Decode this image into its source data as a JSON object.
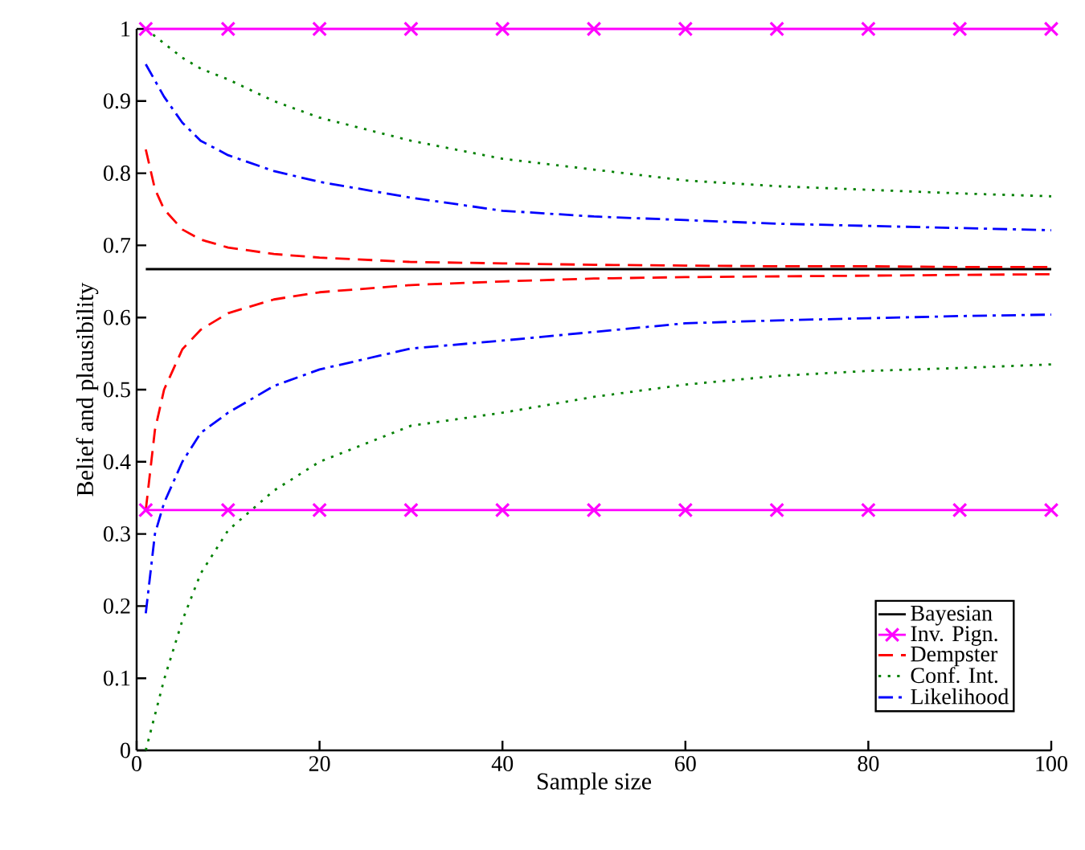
{
  "chart_data": {
    "type": "line",
    "xlabel": "Sample size",
    "ylabel": "Belief and plausibility",
    "xlim": [
      0,
      100
    ],
    "ylim": [
      0,
      1
    ],
    "xticks": [
      0,
      20,
      40,
      60,
      80,
      100
    ],
    "yticks": [
      0,
      0.1,
      0.2,
      0.3,
      0.4,
      0.5,
      0.6,
      0.7,
      0.8,
      0.9,
      1
    ],
    "grid": false,
    "legend": "bottom right",
    "series": [
      {
        "name": "Bayesian",
        "color": "#000000",
        "line_style": "solid",
        "marker": "none",
        "x": [
          1,
          100
        ],
        "values": [
          0.667,
          0.667
        ]
      },
      {
        "name": "Inv. Pign.",
        "color": "#ff00ff",
        "line_style": "solid",
        "marker": "cross",
        "x": [
          1,
          10,
          20,
          30,
          40,
          50,
          60,
          70,
          80,
          90,
          100
        ],
        "values": [
          1,
          1,
          1,
          1,
          1,
          1,
          1,
          1,
          1,
          1,
          1
        ]
      },
      {
        "color": "#ff00ff",
        "line_style": "solid",
        "marker": "cross",
        "x": [
          1,
          10,
          20,
          30,
          40,
          50,
          60,
          70,
          80,
          90,
          100
        ],
        "values": [
          0.333,
          0.333,
          0.333,
          0.333,
          0.333,
          0.333,
          0.333,
          0.333,
          0.333,
          0.333,
          0.333
        ]
      },
      {
        "name": "Dempster",
        "color": "#ff0000",
        "line_style": "dashed",
        "marker": "none",
        "x": [
          1,
          2,
          3,
          5,
          7,
          10,
          15,
          20,
          30,
          40,
          50,
          60,
          70,
          80,
          90,
          100
        ],
        "values": [
          0.833,
          0.778,
          0.75,
          0.722,
          0.708,
          0.697,
          0.688,
          0.683,
          0.677,
          0.675,
          0.673,
          0.672,
          0.671,
          0.671,
          0.67,
          0.67
        ]
      },
      {
        "color": "#ff0000",
        "line_style": "dashed",
        "marker": "none",
        "x": [
          1,
          2,
          3,
          5,
          7,
          10,
          15,
          20,
          30,
          40,
          50,
          60,
          70,
          80,
          90,
          100
        ],
        "values": [
          0.333,
          0.444,
          0.5,
          0.556,
          0.583,
          0.606,
          0.625,
          0.635,
          0.645,
          0.65,
          0.654,
          0.656,
          0.657,
          0.658,
          0.659,
          0.66
        ]
      },
      {
        "name": "Conf. Int.",
        "color": "#008000",
        "line_style": "dotted",
        "marker": "none",
        "x": [
          1,
          3,
          5,
          7,
          10,
          15,
          20,
          30,
          40,
          50,
          60,
          70,
          80,
          90,
          100
        ],
        "values": [
          1,
          0.98,
          0.96,
          0.945,
          0.93,
          0.9,
          0.877,
          0.845,
          0.82,
          0.805,
          0.79,
          0.782,
          0.777,
          0.772,
          0.768
        ]
      },
      {
        "color": "#008000",
        "line_style": "dotted",
        "marker": "none",
        "x": [
          1,
          3,
          5,
          7,
          10,
          15,
          20,
          30,
          40,
          50,
          60,
          70,
          80,
          90,
          100
        ],
        "values": [
          0,
          0.098,
          0.18,
          0.245,
          0.305,
          0.36,
          0.4,
          0.45,
          0.468,
          0.49,
          0.507,
          0.519,
          0.526,
          0.53,
          0.535
        ]
      },
      {
        "name": "Likelihood",
        "color": "#0000ff",
        "line_style": "dashdot",
        "marker": "none",
        "x": [
          1,
          3,
          5,
          7,
          10,
          15,
          20,
          30,
          40,
          50,
          60,
          70,
          80,
          90,
          100
        ],
        "values": [
          0.951,
          0.906,
          0.87,
          0.845,
          0.825,
          0.803,
          0.788,
          0.766,
          0.748,
          0.74,
          0.735,
          0.73,
          0.727,
          0.724,
          0.721
        ]
      },
      {
        "color": "#0000ff",
        "line_style": "dashdot",
        "marker": "none",
        "x": [
          1,
          2,
          3,
          5,
          7,
          10,
          15,
          20,
          30,
          40,
          50,
          60,
          70,
          80,
          90,
          100
        ],
        "values": [
          0.19,
          0.3,
          0.343,
          0.4,
          0.44,
          0.468,
          0.505,
          0.528,
          0.557,
          0.568,
          0.58,
          0.592,
          0.596,
          0.599,
          0.602,
          0.604
        ]
      }
    ]
  }
}
